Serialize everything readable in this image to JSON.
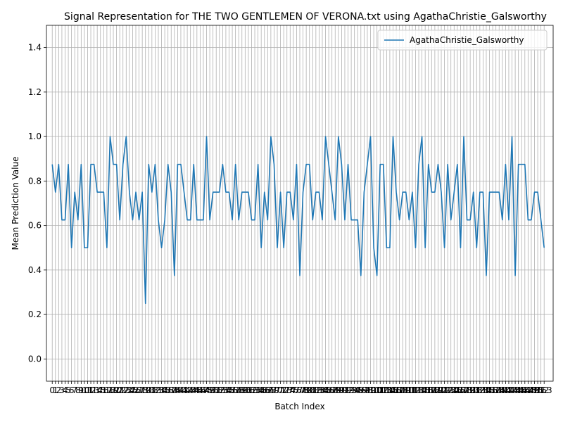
{
  "chart_data": {
    "type": "line",
    "title": "Signal Representation for THE TWO GENTLEMEN OF VERONA.txt using AgathaChristie_Galsworthy",
    "xlabel": "Batch Index",
    "ylabel": "Mean Prediction Value",
    "xlim": [
      -1.8,
      155.8
    ],
    "ylim": [
      -0.1,
      1.5
    ],
    "yticks": [
      "0.0",
      "0.2",
      "0.4",
      "0.6",
      "0.8",
      "1.0",
      "1.2",
      "1.4"
    ],
    "grid": true,
    "legend_position": "top-right",
    "series": [
      {
        "name": "AgathaChristie_Galsworthy",
        "color": "#1f77b4",
        "values": [
          0.875,
          0.75,
          0.875,
          0.625,
          0.625,
          0.875,
          0.5,
          0.75,
          0.625,
          0.875,
          0.5,
          0.5,
          0.875,
          0.875,
          0.75,
          0.75,
          0.75,
          0.5,
          1.0,
          0.875,
          0.875,
          0.625,
          0.875,
          1.0,
          0.75,
          0.625,
          0.75,
          0.625,
          0.75,
          0.25,
          0.875,
          0.75,
          0.875,
          0.625,
          0.5,
          0.625,
          0.875,
          0.75,
          0.375,
          0.875,
          0.875,
          0.75,
          0.625,
          0.625,
          0.875,
          0.625,
          0.625,
          0.625,
          1.0,
          0.625,
          0.75,
          0.75,
          0.75,
          0.875,
          0.75,
          0.75,
          0.625,
          0.875,
          0.625,
          0.75,
          0.75,
          0.75,
          0.625,
          0.625,
          0.875,
          0.5,
          0.75,
          0.625,
          1.0,
          0.875,
          0.5,
          0.75,
          0.5,
          0.75,
          0.75,
          0.625,
          0.875,
          0.375,
          0.75,
          0.875,
          0.875,
          0.625,
          0.75,
          0.75,
          0.625,
          1.0,
          0.875,
          0.75,
          0.625,
          1.0,
          0.875,
          0.625,
          0.875,
          0.625,
          0.625,
          0.625,
          0.375,
          0.75,
          0.875,
          1.0,
          0.5,
          0.375,
          0.875,
          0.875,
          0.5,
          0.5,
          1.0,
          0.75,
          0.625,
          0.75,
          0.75,
          0.625,
          0.75,
          0.5,
          0.875,
          1.0,
          0.5,
          0.875,
          0.75,
          0.75,
          0.875,
          0.75,
          0.5,
          0.875,
          0.625,
          0.75,
          0.875,
          0.5,
          1.0,
          0.625,
          0.625,
          0.75,
          0.5,
          0.75,
          0.75,
          0.375,
          0.75,
          0.75,
          0.75,
          0.75,
          0.625,
          0.875,
          0.625,
          1.0,
          0.375,
          0.875,
          0.875,
          0.875,
          0.625,
          0.625,
          0.75,
          0.75,
          0.625,
          0.5
        ]
      }
    ]
  }
}
